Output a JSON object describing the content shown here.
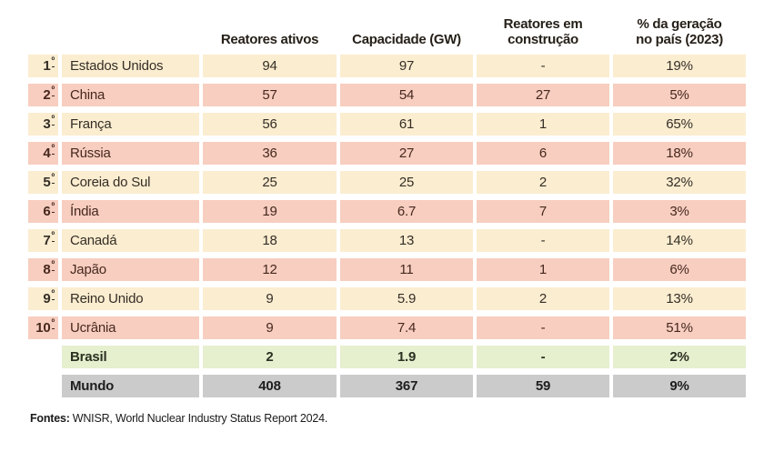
{
  "colors": {
    "cream": "#FBEDD0",
    "pink": "#F7CEC0",
    "green": "#E6EFCE",
    "gray": "#CBCBCB"
  },
  "table": {
    "ordinal_suffix": "º",
    "columns": [
      {
        "id": "rank",
        "label": ""
      },
      {
        "id": "country",
        "label": ""
      },
      {
        "id": "active",
        "label": "Reatores ativos"
      },
      {
        "id": "capacity",
        "label": "Capacidade (GW)"
      },
      {
        "id": "construction",
        "label": "Reatores em\nconstrução"
      },
      {
        "id": "share",
        "label": "% da geração\nno país (2023)"
      }
    ],
    "rows": [
      {
        "rank": "1",
        "country": "Estados Unidos",
        "active": "94",
        "capacity": "97",
        "construction": "-",
        "share": "19%",
        "style": "cream",
        "bold": false
      },
      {
        "rank": "2",
        "country": "China",
        "active": "57",
        "capacity": "54",
        "construction": "27",
        "share": "5%",
        "style": "pink",
        "bold": false
      },
      {
        "rank": "3",
        "country": "França",
        "active": "56",
        "capacity": "61",
        "construction": "1",
        "share": "65%",
        "style": "cream",
        "bold": false
      },
      {
        "rank": "4",
        "country": "Rússia",
        "active": "36",
        "capacity": "27",
        "construction": "6",
        "share": "18%",
        "style": "pink",
        "bold": false
      },
      {
        "rank": "5",
        "country": "Coreia do Sul",
        "active": "25",
        "capacity": "25",
        "construction": "2",
        "share": "32%",
        "style": "cream",
        "bold": false
      },
      {
        "rank": "6",
        "country": "Índia",
        "active": "19",
        "capacity": "6.7",
        "construction": "7",
        "share": "3%",
        "style": "pink",
        "bold": false
      },
      {
        "rank": "7",
        "country": "Canadá",
        "active": "18",
        "capacity": "13",
        "construction": "-",
        "share": "14%",
        "style": "cream",
        "bold": false
      },
      {
        "rank": "8",
        "country": "Japão",
        "active": "12",
        "capacity": "11",
        "construction": "1",
        "share": "6%",
        "style": "pink",
        "bold": false
      },
      {
        "rank": "9",
        "country": "Reino Unido",
        "active": "9",
        "capacity": "5.9",
        "construction": "2",
        "share": "13%",
        "style": "cream",
        "bold": false
      },
      {
        "rank": "10",
        "country": "Ucrânia",
        "active": "9",
        "capacity": "7.4",
        "construction": "-",
        "share": "51%",
        "style": "pink",
        "bold": false
      },
      {
        "rank": "",
        "country": "Brasil",
        "active": "2",
        "capacity": "1.9",
        "construction": "-",
        "share": "2%",
        "style": "green",
        "bold": true
      },
      {
        "rank": "",
        "country": "Mundo",
        "active": "408",
        "capacity": "367",
        "construction": "59",
        "share": "9%",
        "style": "gray",
        "bold": true
      }
    ]
  },
  "footer": {
    "label": "Fontes:",
    "text": "WNISR, World Nuclear Industry Status Report 2024."
  },
  "chart_data": {
    "type": "table",
    "columns": [
      "",
      "",
      "Reatores ativos",
      "Capacidade (GW)",
      "Reatores em construção",
      "% da geração no país (2023)"
    ],
    "rows": [
      [
        "1º",
        "Estados Unidos",
        94,
        97,
        "-",
        "19%"
      ],
      [
        "2º",
        "China",
        57,
        54,
        27,
        "5%"
      ],
      [
        "3º",
        "França",
        56,
        61,
        1,
        "65%"
      ],
      [
        "4º",
        "Rússia",
        36,
        27,
        6,
        "18%"
      ],
      [
        "5º",
        "Coreia do Sul",
        25,
        25,
        2,
        "32%"
      ],
      [
        "6º",
        "Índia",
        19,
        6.7,
        7,
        "3%"
      ],
      [
        "7º",
        "Canadá",
        18,
        13,
        "-",
        "14%"
      ],
      [
        "8º",
        "Japão",
        12,
        11,
        1,
        "6%"
      ],
      [
        "9º",
        "Reino Unido",
        9,
        5.9,
        2,
        "13%"
      ],
      [
        "10º",
        "Ucrânia",
        9,
        7.4,
        "-",
        "51%"
      ],
      [
        "",
        "Brasil",
        2,
        1.9,
        "-",
        "2%"
      ],
      [
        "",
        "Mundo",
        408,
        367,
        59,
        "9%"
      ]
    ],
    "source": "Fontes: WNISR, World Nuclear Industry Status Report 2024.",
    "row_styles": [
      "cream/pink alternating for ranks 1-10",
      "Brasil: light green",
      "Mundo: gray"
    ]
  }
}
